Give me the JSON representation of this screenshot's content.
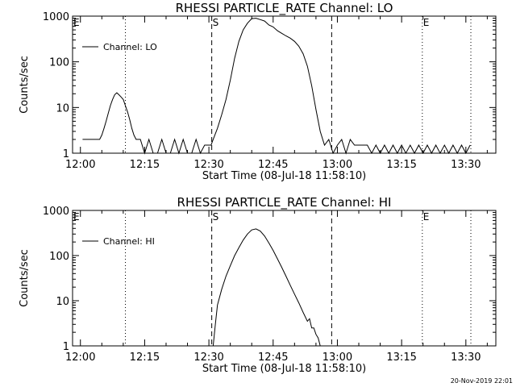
{
  "chart_data": [
    {
      "type": "line",
      "title": "RHESSI PARTICLE_RATE Channel: LO",
      "xlabel": "Start Time (08-Jul-18 11:58:10)",
      "ylabel": "Counts/sec",
      "y_scale": "log",
      "ylim": [
        1,
        1000
      ],
      "xlim": [
        "11:58:10",
        "13:37:00"
      ],
      "x_ticks": [
        "12:00",
        "12:15",
        "12:30",
        "12:45",
        "13:00",
        "13:15",
        "13:30"
      ],
      "y_ticks": [
        "1",
        "10",
        "100",
        "1000"
      ],
      "legend": {
        "position": "top-left",
        "entries": [
          "Channel: LO"
        ]
      },
      "markers": [
        {
          "label": "E",
          "time": "11:58:10",
          "style": "dotted"
        },
        {
          "label": "",
          "time": "12:10:30",
          "style": "dotted"
        },
        {
          "label": "S",
          "time": "12:30:40",
          "style": "dashed"
        },
        {
          "label": "",
          "time": "12:58:40",
          "style": "dashed"
        },
        {
          "label": "E",
          "time": "13:19:50",
          "style": "dotted"
        },
        {
          "label": "",
          "time": "13:31:10",
          "style": "dotted"
        }
      ],
      "series": [
        {
          "name": "Channel: LO",
          "points": [
            [
              "12:00:30",
              2
            ],
            [
              "12:01:30",
              2
            ],
            [
              "12:02:30",
              2
            ],
            [
              "12:03:30",
              2
            ],
            [
              "12:04:30",
              2
            ],
            [
              "12:05:00",
              2.5
            ],
            [
              "12:05:30",
              3.5
            ],
            [
              "12:06:00",
              5
            ],
            [
              "12:06:30",
              7.5
            ],
            [
              "12:07:00",
              11
            ],
            [
              "12:07:30",
              15
            ],
            [
              "12:08:00",
              19
            ],
            [
              "12:08:30",
              21
            ],
            [
              "12:09:00",
              19
            ],
            [
              "12:09:30",
              17
            ],
            [
              "12:10:00",
              15
            ],
            [
              "12:10:30",
              11
            ],
            [
              "12:11:00",
              8
            ],
            [
              "12:11:30",
              5.5
            ],
            [
              "12:12:00",
              3.5
            ],
            [
              "12:12:30",
              2.5
            ],
            [
              "12:13:00",
              2
            ],
            [
              "12:14:00",
              2
            ],
            [
              "12:15:00",
              1
            ],
            [
              "12:16:00",
              2
            ],
            [
              "12:17:00",
              1
            ],
            [
              "12:18:00",
              1
            ],
            [
              "12:19:00",
              2
            ],
            [
              "12:20:00",
              1
            ],
            [
              "12:21:00",
              1
            ],
            [
              "12:22:00",
              2
            ],
            [
              "12:23:00",
              1
            ],
            [
              "12:24:00",
              2
            ],
            [
              "12:25:00",
              1
            ],
            [
              "12:26:00",
              1
            ],
            [
              "12:27:00",
              2
            ],
            [
              "12:28:00",
              1
            ],
            [
              "12:29:00",
              1.5
            ],
            [
              "12:30:30",
              1.5
            ],
            [
              "12:31:00",
              2
            ],
            [
              "12:32:00",
              3.5
            ],
            [
              "12:33:00",
              7
            ],
            [
              "12:34:00",
              15
            ],
            [
              "12:35:00",
              40
            ],
            [
              "12:36:00",
              120
            ],
            [
              "12:37:00",
              280
            ],
            [
              "12:38:00",
              500
            ],
            [
              "12:39:00",
              700
            ],
            [
              "12:40:00",
              880
            ],
            [
              "12:41:00",
              900
            ],
            [
              "12:42:00",
              840
            ],
            [
              "12:43:00",
              780
            ],
            [
              "12:44:00",
              640
            ],
            [
              "12:45:00",
              580
            ],
            [
              "12:46:00",
              480
            ],
            [
              "12:47:00",
              420
            ],
            [
              "12:48:00",
              370
            ],
            [
              "12:49:00",
              330
            ],
            [
              "12:50:00",
              280
            ],
            [
              "12:51:00",
              220
            ],
            [
              "12:52:00",
              150
            ],
            [
              "12:53:00",
              80
            ],
            [
              "12:54:00",
              30
            ],
            [
              "12:55:00",
              9
            ],
            [
              "12:56:00",
              3
            ],
            [
              "12:57:00",
              1.5
            ],
            [
              "12:58:00",
              2
            ],
            [
              "12:59:00",
              1
            ],
            [
              "13:00:00",
              1.5
            ],
            [
              "13:01:00",
              2
            ],
            [
              "13:02:00",
              1
            ],
            [
              "13:03:00",
              2
            ],
            [
              "13:04:00",
              1.5
            ],
            [
              "13:05:00",
              1.5
            ],
            [
              "13:06:00",
              1.5
            ],
            [
              "13:07:00",
              1.5
            ],
            [
              "13:08:00",
              1
            ],
            [
              "13:09:00",
              1.5
            ],
            [
              "13:10:00",
              1
            ],
            [
              "13:11:00",
              1.5
            ],
            [
              "13:12:00",
              1
            ],
            [
              "13:13:00",
              1.5
            ],
            [
              "13:14:00",
              1
            ],
            [
              "13:15:00",
              1.5
            ],
            [
              "13:16:00",
              1
            ],
            [
              "13:17:00",
              1.5
            ],
            [
              "13:18:00",
              1
            ],
            [
              "13:19:00",
              1.5
            ],
            [
              "13:20:00",
              1
            ],
            [
              "13:21:00",
              1.5
            ],
            [
              "13:22:00",
              1
            ],
            [
              "13:23:00",
              1.5
            ],
            [
              "13:24:00",
              1
            ],
            [
              "13:25:00",
              1.5
            ],
            [
              "13:26:00",
              1
            ],
            [
              "13:27:00",
              1.5
            ],
            [
              "13:28:00",
              1
            ],
            [
              "13:29:00",
              1.5
            ],
            [
              "13:30:00",
              1
            ],
            [
              "13:31:00",
              1.5
            ]
          ]
        }
      ]
    },
    {
      "type": "line",
      "title": "RHESSI PARTICLE_RATE Channel: HI",
      "xlabel": "Start Time (08-Jul-18 11:58:10)",
      "ylabel": "Counts/sec",
      "y_scale": "log",
      "ylim": [
        1,
        1000
      ],
      "xlim": [
        "11:58:10",
        "13:37:00"
      ],
      "x_ticks": [
        "12:00",
        "12:15",
        "12:30",
        "12:45",
        "13:00",
        "13:15",
        "13:30"
      ],
      "y_ticks": [
        "1",
        "10",
        "100",
        "1000"
      ],
      "legend": {
        "position": "top-left",
        "entries": [
          "Channel: HI"
        ]
      },
      "markers": [
        {
          "label": "E",
          "time": "11:58:10",
          "style": "dotted"
        },
        {
          "label": "",
          "time": "12:10:30",
          "style": "dotted"
        },
        {
          "label": "S",
          "time": "12:30:40",
          "style": "dashed"
        },
        {
          "label": "",
          "time": "12:58:40",
          "style": "dashed"
        },
        {
          "label": "E",
          "time": "13:19:50",
          "style": "dotted"
        },
        {
          "label": "",
          "time": "13:31:10",
          "style": "dotted"
        }
      ],
      "series": [
        {
          "name": "Channel: HI",
          "points": [
            [
              "12:31:00",
              1
            ],
            [
              "12:31:30",
              3
            ],
            [
              "12:32:00",
              8
            ],
            [
              "12:33:00",
              18
            ],
            [
              "12:34:00",
              35
            ],
            [
              "12:35:00",
              60
            ],
            [
              "12:36:00",
              100
            ],
            [
              "12:37:00",
              150
            ],
            [
              "12:38:00",
              220
            ],
            [
              "12:39:00",
              300
            ],
            [
              "12:40:00",
              370
            ],
            [
              "12:41:00",
              390
            ],
            [
              "12:42:00",
              350
            ],
            [
              "12:43:00",
              270
            ],
            [
              "12:44:00",
              190
            ],
            [
              "12:45:00",
              130
            ],
            [
              "12:46:00",
              85
            ],
            [
              "12:47:00",
              55
            ],
            [
              "12:48:00",
              35
            ],
            [
              "12:49:00",
              22
            ],
            [
              "12:50:00",
              14
            ],
            [
              "12:51:00",
              9
            ],
            [
              "12:52:00",
              5.5
            ],
            [
              "12:53:00",
              3.5
            ],
            [
              "12:53:30",
              4
            ],
            [
              "12:54:00",
              2.5
            ],
            [
              "12:54:30",
              2.5
            ],
            [
              "12:55:00",
              1.8
            ],
            [
              "12:55:30",
              1.5
            ],
            [
              "12:56:00",
              1
            ]
          ]
        }
      ]
    }
  ],
  "footer_date": "20-Nov-2019 22:01"
}
